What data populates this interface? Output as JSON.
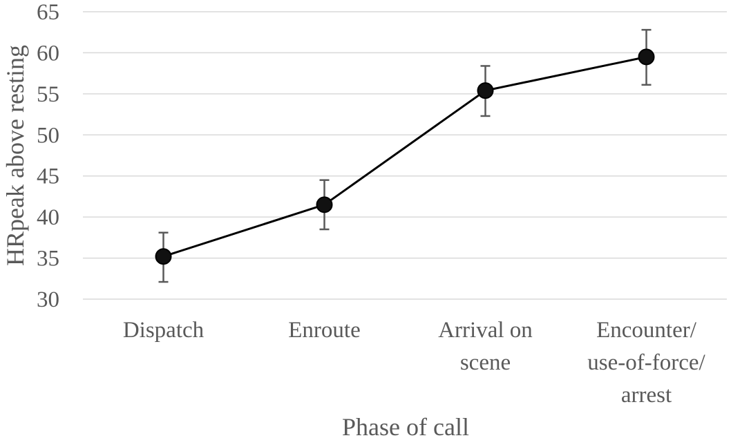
{
  "chart_data": {
    "type": "line",
    "xlabel": "Phase of call",
    "ylabel": "HRpeak above resting",
    "ylim": [
      30,
      65
    ],
    "yticks": [
      30,
      35,
      40,
      45,
      50,
      55,
      60,
      65
    ],
    "grid": true,
    "categories": [
      [
        "Dispatch"
      ],
      [
        "Enroute"
      ],
      [
        "Arrival on",
        "scene"
      ],
      [
        "Encounter/",
        "use-of-force/",
        "arrest"
      ]
    ],
    "series": [
      {
        "values": [
          35.2,
          41.5,
          55.4,
          59.5
        ],
        "error_low": [
          32.1,
          38.5,
          52.3,
          56.1
        ],
        "error_high": [
          38.1,
          44.5,
          58.4,
          62.8
        ]
      }
    ],
    "colors": {
      "grid": "#d9d9d9",
      "line": "#000000",
      "error_bar": "#595959",
      "text": "#595959"
    }
  }
}
